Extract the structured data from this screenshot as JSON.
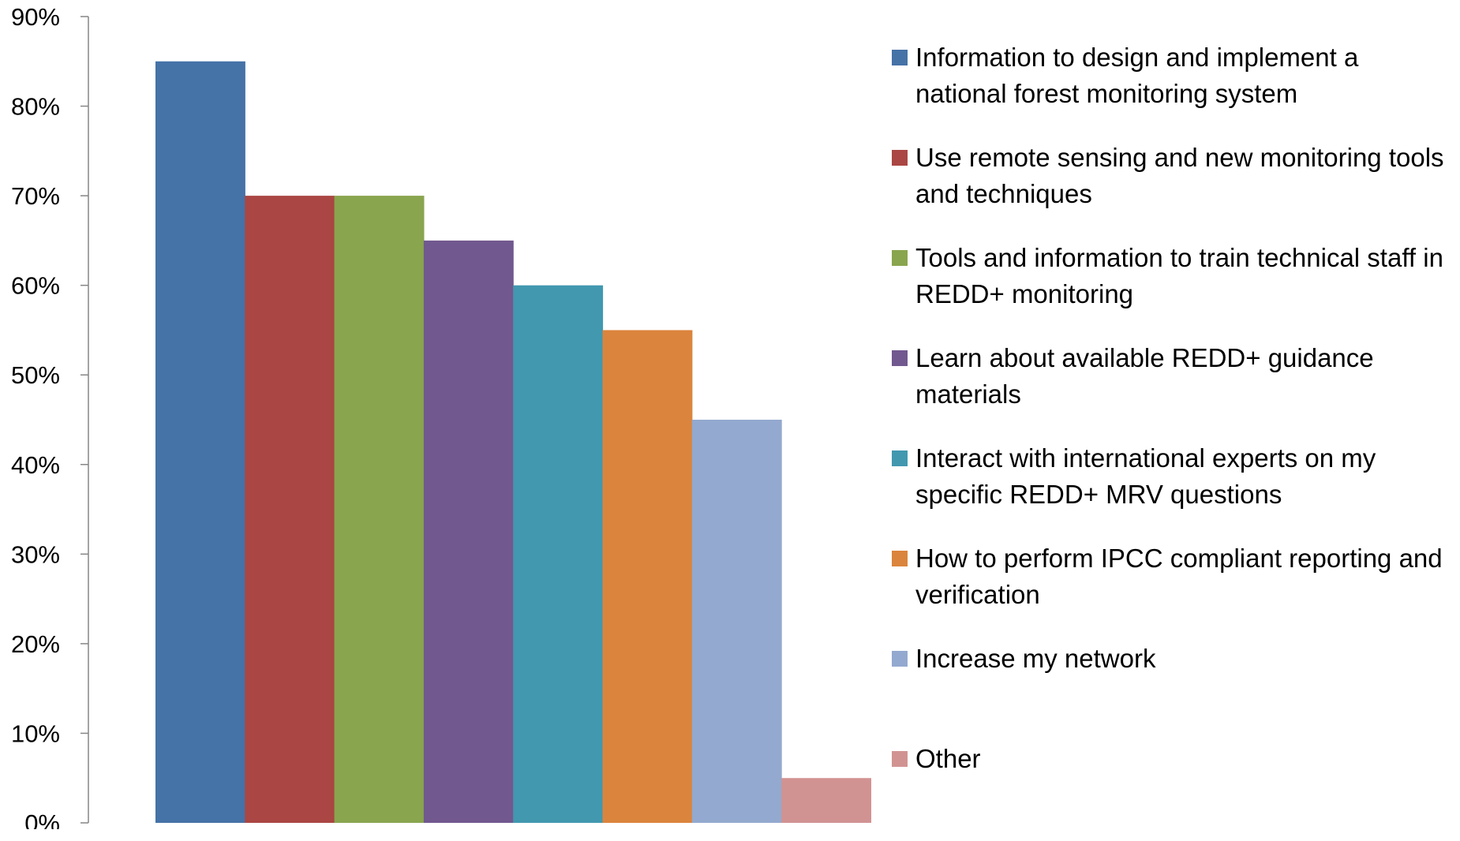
{
  "chart_data": {
    "type": "bar",
    "title": "",
    "xlabel": "",
    "ylabel": "",
    "ylim": [
      0,
      90
    ],
    "y_ticks": [
      "0%",
      "10%",
      "20%",
      "30%",
      "40%",
      "50%",
      "60%",
      "70%",
      "80%",
      "90%"
    ],
    "grid": false,
    "legend_position": "right",
    "series": [
      {
        "name": "Information to design and implement a national forest monitoring system",
        "value": 85,
        "color": "#4572A7"
      },
      {
        "name": "Use remote sensing and new monitoring tools and techniques",
        "value": 70,
        "color": "#AA4643"
      },
      {
        "name": "Tools and information to train technical staff in REDD+ monitoring",
        "value": 70,
        "color": "#89A54E"
      },
      {
        "name": "Learn about available REDD+ guidance materials",
        "value": 65,
        "color": "#71588F"
      },
      {
        "name": "Interact with international experts on my specific REDD+ MRV questions",
        "value": 60,
        "color": "#4198AF"
      },
      {
        "name": "How to perform IPCC compliant reporting and verification",
        "value": 55,
        "color": "#DB843D"
      },
      {
        "name": "Increase my network",
        "value": 45,
        "color": "#93A9CF"
      },
      {
        "name": "Other",
        "value": 5,
        "color": "#D19392"
      }
    ]
  }
}
